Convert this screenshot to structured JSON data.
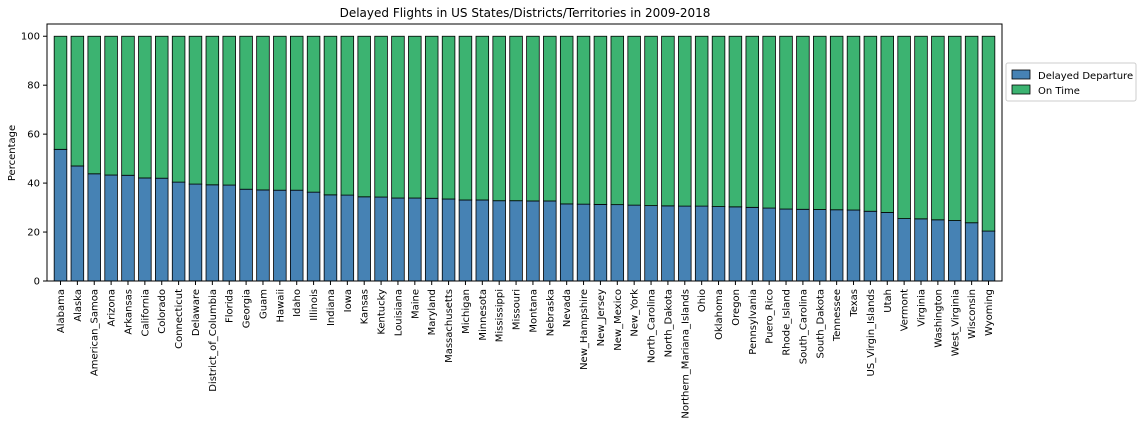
{
  "chart_data": {
    "type": "bar",
    "stacked": true,
    "title": "Delayed Flights in US States/Districts/Territories in 2009-2018",
    "xlabel": "",
    "ylabel": "Percentage",
    "ylim": [
      0,
      105
    ],
    "yticks": [
      0,
      20,
      40,
      60,
      80,
      100
    ],
    "grid": false,
    "legend_position": "right",
    "categories": [
      "Alabama",
      "Alaska",
      "American_Samoa",
      "Arizona",
      "Arkansas",
      "California",
      "Colorado",
      "Connecticut",
      "Delaware",
      "District_of_Columbia",
      "Florida",
      "Georgia",
      "Guam",
      "Hawaii",
      "Idaho",
      "Illinois",
      "Indiana",
      "Iowa",
      "Kansas",
      "Kentucky",
      "Louisiana",
      "Maine",
      "Maryland",
      "Massachusetts",
      "Michigan",
      "Minnesota",
      "Mississippi",
      "Missouri",
      "Montana",
      "Nebraska",
      "Nevada",
      "New_Hampshire",
      "New_Jersey",
      "New_Mexico",
      "New_York",
      "North_Carolina",
      "North_Dakota",
      "Northern_Mariana_Islands",
      "Ohio",
      "Oklahoma",
      "Oregon",
      "Pennsylvania",
      "Puero_Rico",
      "Rhode_Island",
      "South_Carolina",
      "South_Dakota",
      "Tennessee",
      "Texas",
      "US_Virgin_Islands",
      "Utah",
      "Vermont",
      "Virginia",
      "Washington",
      "West_Virginia",
      "Wisconsin",
      "Wyoming"
    ],
    "series": [
      {
        "name": "Delayed Departure",
        "color": "#4682b4",
        "values": [
          53.8,
          47.0,
          43.8,
          43.3,
          43.2,
          42.1,
          42.0,
          40.4,
          39.6,
          39.3,
          39.2,
          37.5,
          37.2,
          37.1,
          37.1,
          36.3,
          35.2,
          35.1,
          34.4,
          34.3,
          33.9,
          33.9,
          33.8,
          33.5,
          33.1,
          33.1,
          32.8,
          32.8,
          32.7,
          32.7,
          31.5,
          31.4,
          31.3,
          31.2,
          31.0,
          30.8,
          30.7,
          30.6,
          30.6,
          30.4,
          30.3,
          30.1,
          29.8,
          29.4,
          29.3,
          29.2,
          29.1,
          29.0,
          28.5,
          28.0,
          25.5,
          25.4,
          25.0,
          24.7,
          23.8,
          20.4
        ]
      },
      {
        "name": "On Time",
        "color": "#3cb371",
        "values": [
          46.2,
          53.0,
          56.2,
          56.7,
          56.8,
          57.9,
          58.0,
          59.6,
          60.4,
          60.7,
          60.8,
          62.5,
          62.8,
          62.9,
          62.9,
          63.7,
          64.8,
          64.9,
          65.6,
          65.7,
          66.1,
          66.1,
          66.2,
          66.5,
          66.9,
          66.9,
          67.2,
          67.2,
          67.3,
          67.3,
          68.5,
          68.6,
          68.7,
          68.8,
          69.0,
          69.2,
          69.3,
          69.4,
          69.4,
          69.6,
          69.7,
          69.9,
          70.2,
          70.6,
          70.7,
          70.8,
          70.9,
          71.0,
          71.5,
          72.0,
          74.5,
          74.6,
          75.0,
          75.3,
          76.2,
          79.6
        ]
      }
    ]
  }
}
